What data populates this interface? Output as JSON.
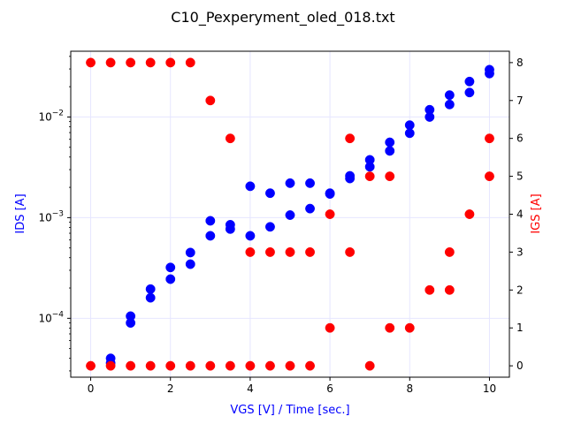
{
  "chart_data": {
    "type": "scatter",
    "title": "C10_Pexperyment_oled_018.txt",
    "xlabel": "VGS [V] / Time [sec.]",
    "ylabel_left": "IDS [A]",
    "ylabel_right": "IGS [A]",
    "xlim": [
      -0.5,
      10.5
    ],
    "ylim_left": [
      2.6e-05,
      0.045
    ],
    "yscale_left": "log",
    "ylim_right": [
      -0.3,
      8.3
    ],
    "grid": true,
    "x_ticks": [
      "0",
      "2",
      "4",
      "6",
      "8",
      "10"
    ],
    "x_tick_values": [
      0,
      2,
      4,
      6,
      8,
      10
    ],
    "y_left_ticks": [
      {
        "value": 0.01,
        "base": "10",
        "exp": "−2"
      },
      {
        "value": 0.001,
        "base": "10",
        "exp": "−3"
      },
      {
        "value": 0.0001,
        "base": "10",
        "exp": "−4"
      }
    ],
    "y_right_ticks": [
      "0",
      "1",
      "2",
      "3",
      "4",
      "5",
      "6",
      "7",
      "8"
    ],
    "y_right_tick_values": [
      0,
      1,
      2,
      3,
      4,
      5,
      6,
      7,
      8
    ],
    "colors": {
      "ids": "#0000ff",
      "igs": "#ff0000",
      "grid": "#e6e6ff",
      "axis": "#000000"
    },
    "series": [
      {
        "name": "IDS [A]",
        "axis": "left",
        "color": "#0000ff",
        "points": [
          [
            0.5,
            4e-05
          ],
          [
            0.5,
            3.6e-05
          ],
          [
            1,
            0.000105
          ],
          [
            1,
            9e-05
          ],
          [
            1.5,
            0.000195
          ],
          [
            1.5,
            0.00016
          ],
          [
            2,
            0.00032
          ],
          [
            2,
            0.000245
          ],
          [
            2.5,
            0.00045
          ],
          [
            2.5,
            0.000345
          ],
          [
            3,
            0.00093
          ],
          [
            3,
            0.00066
          ],
          [
            3.5,
            0.00085
          ],
          [
            3.5,
            0.00077
          ],
          [
            4,
            0.00205
          ],
          [
            4,
            0.00066
          ],
          [
            4.5,
            0.00175
          ],
          [
            4.5,
            0.00081
          ],
          [
            5,
            0.0022
          ],
          [
            5,
            0.00106
          ],
          [
            5.5,
            0.0022
          ],
          [
            5.5,
            0.00123
          ],
          [
            6,
            0.00175
          ],
          [
            6,
            0.00172
          ],
          [
            6.5,
            0.0026
          ],
          [
            6.5,
            0.00245
          ],
          [
            7,
            0.00375
          ],
          [
            7,
            0.0032
          ],
          [
            7.5,
            0.0056
          ],
          [
            7.5,
            0.0046
          ],
          [
            8,
            0.0083
          ],
          [
            8,
            0.0069
          ],
          [
            8.5,
            0.0118
          ],
          [
            8.5,
            0.01
          ],
          [
            9,
            0.0165
          ],
          [
            9,
            0.0133
          ],
          [
            9.5,
            0.0225
          ],
          [
            9.5,
            0.0175
          ],
          [
            10,
            0.0295
          ],
          [
            10,
            0.027
          ]
        ]
      },
      {
        "name": "IGS [A]",
        "axis": "right",
        "color": "#ff0000",
        "points": [
          [
            0,
            8
          ],
          [
            0,
            0
          ],
          [
            0.5,
            8
          ],
          [
            0.5,
            0
          ],
          [
            1,
            8
          ],
          [
            1,
            0
          ],
          [
            1.5,
            8
          ],
          [
            1.5,
            0
          ],
          [
            2,
            8
          ],
          [
            2,
            0
          ],
          [
            2.5,
            8
          ],
          [
            2.5,
            0
          ],
          [
            3,
            7
          ],
          [
            3,
            0
          ],
          [
            3.5,
            6
          ],
          [
            3.5,
            0
          ],
          [
            4,
            3
          ],
          [
            4,
            0
          ],
          [
            4.5,
            3
          ],
          [
            4.5,
            0
          ],
          [
            5,
            3
          ],
          [
            5,
            0
          ],
          [
            5.5,
            3
          ],
          [
            5.5,
            0
          ],
          [
            6,
            4
          ],
          [
            6,
            1
          ],
          [
            6.5,
            6
          ],
          [
            6.5,
            3
          ],
          [
            7,
            5
          ],
          [
            7,
            0
          ],
          [
            7.5,
            5
          ],
          [
            7.5,
            1
          ],
          [
            8,
            1
          ],
          [
            8.5,
            2
          ],
          [
            9,
            3
          ],
          [
            9,
            2
          ],
          [
            9.5,
            4
          ],
          [
            10,
            6
          ],
          [
            10,
            5
          ]
        ]
      }
    ]
  }
}
